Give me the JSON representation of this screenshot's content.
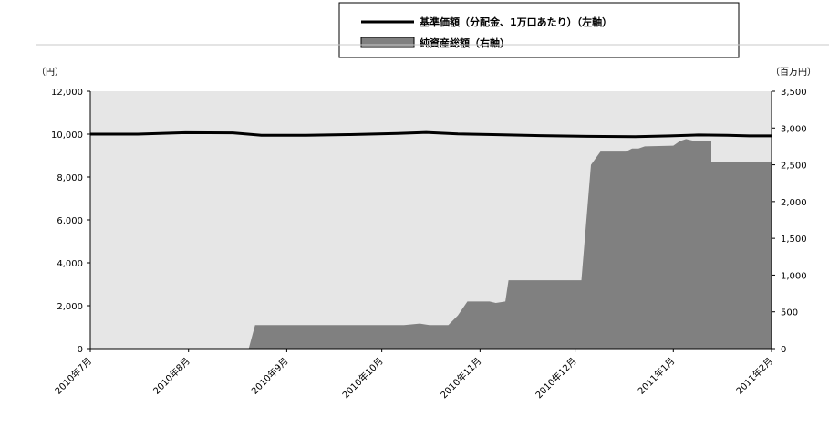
{
  "chart_data": {
    "type": "area",
    "legend": {
      "placement": "top-center",
      "entries": [
        {
          "label": "基準価額（分配金、1万口あたり）（左軸）",
          "style": "line",
          "color": "#000000"
        },
        {
          "label": "純資産総額（右軸）",
          "style": "area",
          "color": "#808080"
        }
      ]
    },
    "left_axis": {
      "unit": "（円）",
      "ylim": [
        0,
        12000
      ],
      "ticks": [
        "0",
        "2,000",
        "4,000",
        "6,000",
        "8,000",
        "10,000",
        "12,000"
      ]
    },
    "right_axis": {
      "unit": "（百万円）",
      "ylim": [
        0,
        3500
      ],
      "ticks": [
        "0",
        "500",
        "1,000",
        "1,500",
        "2,000",
        "2,500",
        "3,000",
        "3,500"
      ]
    },
    "x_axis": {
      "range": [
        "2010-07-01",
        "2011-02-01"
      ],
      "tick_dates": [
        "2010-07-01",
        "2010-08-01",
        "2010-09-01",
        "2010-10-01",
        "2010-11-01",
        "2010-12-01",
        "2011-01-01",
        "2011-02-01"
      ],
      "ticks": [
        "2010年7月",
        "2010年8月",
        "2010年9月",
        "2010年10月",
        "2010年11月",
        "2010年12月",
        "2011年1月",
        "2011年2月"
      ]
    },
    "background_color": "#e6e6e6",
    "grid": false,
    "series": [
      {
        "name": "基準価額（分配金、1万口あたり）（左軸）",
        "axis": "left",
        "type": "line",
        "color": "#000000",
        "points": [
          [
            "2010-07-01",
            10000
          ],
          [
            "2010-07-16",
            10000
          ],
          [
            "2010-07-31",
            10070
          ],
          [
            "2010-08-15",
            10060
          ],
          [
            "2010-08-24",
            9950
          ],
          [
            "2010-09-07",
            9950
          ],
          [
            "2010-09-21",
            9980
          ],
          [
            "2010-10-06",
            10030
          ],
          [
            "2010-10-15",
            10080
          ],
          [
            "2010-10-25",
            10010
          ],
          [
            "2010-11-05",
            9980
          ],
          [
            "2010-11-20",
            9930
          ],
          [
            "2010-12-05",
            9900
          ],
          [
            "2010-12-20",
            9880
          ],
          [
            "2010-12-31",
            9920
          ],
          [
            "2011-01-09",
            9960
          ],
          [
            "2011-01-18",
            9950
          ],
          [
            "2011-01-25",
            9920
          ],
          [
            "2011-02-01",
            9920
          ]
        ]
      },
      {
        "name": "純資産総額（右軸）",
        "axis": "right",
        "type": "area",
        "color": "#808080",
        "points": [
          [
            "2010-07-01",
            0
          ],
          [
            "2010-08-20",
            0
          ],
          [
            "2010-08-22",
            320
          ],
          [
            "2010-09-25",
            320
          ],
          [
            "2010-10-08",
            320
          ],
          [
            "2010-10-13",
            340
          ],
          [
            "2010-10-16",
            320
          ],
          [
            "2010-10-22",
            320
          ],
          [
            "2010-10-25",
            450
          ],
          [
            "2010-10-28",
            640
          ],
          [
            "2010-11-03",
            640
          ],
          [
            "2010-11-04",
            640
          ],
          [
            "2010-11-06",
            620
          ],
          [
            "2010-11-09",
            640
          ],
          [
            "2010-11-10",
            930
          ],
          [
            "2010-11-30",
            930
          ],
          [
            "2010-12-03",
            930
          ],
          [
            "2010-12-06",
            2500
          ],
          [
            "2010-12-09",
            2680
          ],
          [
            "2010-12-17",
            2680
          ],
          [
            "2010-12-19",
            2720
          ],
          [
            "2010-12-21",
            2720
          ],
          [
            "2010-12-23",
            2750
          ],
          [
            "2011-01-01",
            2760
          ],
          [
            "2011-01-03",
            2820
          ],
          [
            "2011-01-05",
            2850
          ],
          [
            "2011-01-08",
            2820
          ],
          [
            "2011-01-13",
            2820
          ],
          [
            "2011-01-13",
            2540
          ],
          [
            "2011-02-01",
            2540
          ]
        ]
      }
    ]
  }
}
